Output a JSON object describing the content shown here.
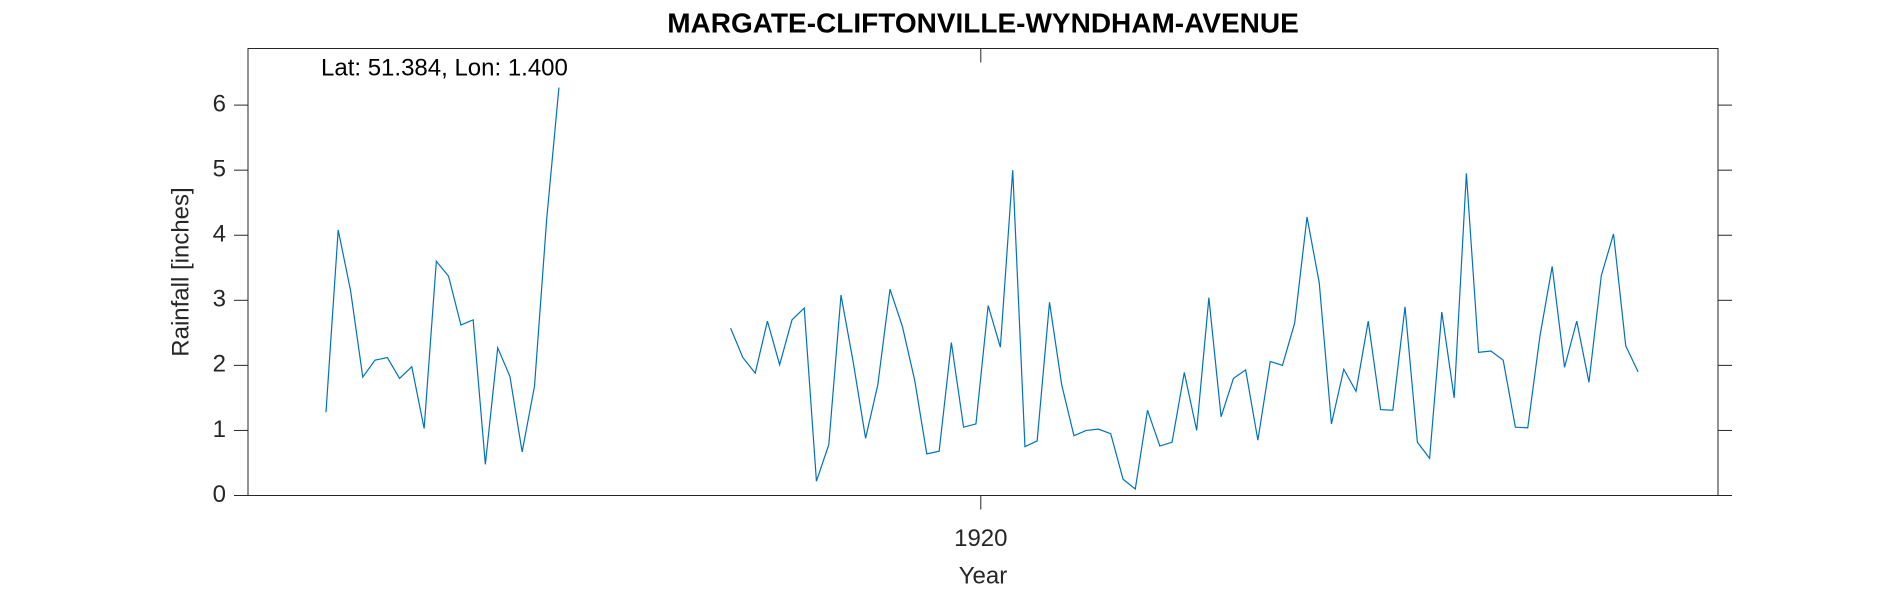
{
  "chart_data": {
    "type": "line",
    "title": "MARGATE-CLIFTONVILLE-WYNDHAM-AVENUE",
    "annotation": "Lat: 51.384, Lon: 1.400",
    "x_label": "Year",
    "y_label": "Rainfall [inches]",
    "xlim": [
      1915.02,
      1925.01
    ],
    "xticks": [
      1920
    ],
    "ylim": [
      0,
      6.87
    ],
    "yticks": [
      0,
      1,
      2,
      3,
      4,
      5,
      6
    ],
    "grid": false,
    "x": [
      1915.55,
      1915.633,
      1915.717,
      1915.8,
      1915.883,
      1915.967,
      1916.05,
      1916.133,
      1916.217,
      1916.3,
      1916.383,
      1916.467,
      1916.55,
      1916.633,
      1916.717,
      1916.8,
      1916.883,
      1916.967,
      1917.05,
      1917.133,
      1917.217,
      1917.3,
      1917.383,
      1917.467,
      1917.55,
      1917.633,
      1917.717,
      1917.8,
      1917.883,
      1917.967,
      1918.05,
      1918.133,
      1918.217,
      1918.3,
      1918.383,
      1918.467,
      1918.55,
      1918.633,
      1918.717,
      1918.8,
      1918.883,
      1918.967,
      1919.05,
      1919.133,
      1919.217,
      1919.3,
      1919.383,
      1919.467,
      1919.55,
      1919.633,
      1919.717,
      1919.8,
      1919.883,
      1919.967,
      1920.05,
      1920.133,
      1920.217,
      1920.3,
      1920.383,
      1920.467,
      1920.55,
      1920.633,
      1920.717,
      1920.8,
      1920.883,
      1920.967,
      1921.05,
      1921.133,
      1921.217,
      1921.3,
      1921.383,
      1921.467,
      1921.55,
      1921.633,
      1921.717,
      1921.8,
      1921.883,
      1921.967,
      1922.05,
      1922.133,
      1922.217,
      1922.3,
      1922.383,
      1922.467,
      1922.55,
      1922.633,
      1922.717,
      1922.8,
      1922.883,
      1922.967,
      1923.05,
      1923.133,
      1923.217,
      1923.3,
      1923.383,
      1923.467,
      1923.55,
      1923.633,
      1923.717,
      1923.8,
      1923.883,
      1923.967,
      1924.05,
      1924.133,
      1924.217,
      1924.3,
      1924.383,
      1924.467
    ],
    "series": [
      {
        "color": "#0072bd",
        "values": [
          1.28,
          4.08,
          3.15,
          1.82,
          2.08,
          2.12,
          1.8,
          1.98,
          1.03,
          3.6,
          3.37,
          2.62,
          2.7,
          0.48,
          2.27,
          1.83,
          0.67,
          1.68,
          4.25,
          6.27,
          null,
          null,
          null,
          null,
          null,
          null,
          null,
          null,
          null,
          null,
          null,
          null,
          null,
          2.57,
          2.12,
          1.88,
          2.68,
          2.01,
          2.7,
          2.88,
          0.22,
          0.78,
          3.08,
          2.05,
          0.88,
          1.7,
          3.17,
          2.6,
          1.78,
          0.64,
          0.68,
          2.35,
          1.05,
          1.1,
          2.92,
          2.28,
          5.0,
          0.75,
          0.84,
          2.97,
          1.7,
          0.92,
          1.0,
          1.02,
          0.95,
          0.25,
          0.1,
          1.31,
          0.76,
          0.82,
          1.89,
          1.0,
          3.04,
          1.21,
          1.8,
          1.93,
          0.85,
          2.06,
          2.0,
          2.65,
          4.28,
          3.27,
          1.1,
          1.94,
          1.6,
          2.68,
          1.32,
          1.31,
          2.9,
          0.82,
          0.57,
          2.82,
          1.5,
          4.95,
          2.2,
          2.22,
          2.08,
          1.05,
          1.04,
          2.45,
          3.52,
          1.97,
          2.68,
          1.74,
          3.38,
          4.02,
          2.3,
          1.9
        ]
      }
    ]
  }
}
